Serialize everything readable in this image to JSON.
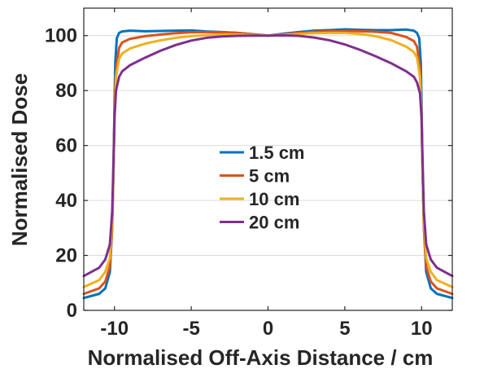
{
  "chart_data": {
    "type": "line",
    "title": "",
    "xlabel": "Normalised Off-Axis Distance / cm",
    "ylabel": "Normalised Dose",
    "xlim": [
      -12,
      12
    ],
    "ylim": [
      0,
      110
    ],
    "xticks": [
      -10,
      -5,
      0,
      5,
      10
    ],
    "xtick_labels": [
      "-10",
      "-5",
      "0",
      "5",
      "10"
    ],
    "yticks": [
      0,
      20,
      40,
      60,
      80,
      100
    ],
    "ytick_labels": [
      "0",
      "20",
      "40",
      "60",
      "80",
      "100"
    ],
    "grid": "horizontal",
    "legend_position": "center",
    "series": [
      {
        "name": "1.5 cm",
        "color": "#0072BD",
        "x": [
          -12,
          -11,
          -10.6,
          -10.3,
          -10.15,
          -10.05,
          -10.0,
          -9.95,
          -9.85,
          -9.7,
          -9.5,
          -9,
          -8,
          -7,
          -6,
          -5,
          -4,
          -3,
          -2,
          -1,
          0,
          1,
          2,
          3,
          4,
          5,
          6,
          7,
          8,
          9,
          9.5,
          9.7,
          9.85,
          9.95,
          10.0,
          10.05,
          10.15,
          10.3,
          10.6,
          11,
          12
        ],
        "y": [
          4.5,
          6,
          8,
          14,
          30,
          55,
          75,
          90,
          99,
          101,
          101.5,
          101.8,
          101.6,
          101.7,
          101.8,
          101.9,
          101.5,
          101.3,
          101,
          100.5,
          100,
          100.7,
          101.3,
          101.8,
          102,
          102.3,
          102.1,
          102,
          102,
          102.2,
          101.8,
          101,
          99,
          90,
          75,
          55,
          30,
          14,
          8,
          6,
          4.5
        ]
      },
      {
        "name": "5 cm",
        "color": "#D95319",
        "x": [
          -12,
          -11,
          -10.6,
          -10.3,
          -10.15,
          -10.05,
          -10.0,
          -9.9,
          -9.7,
          -9.5,
          -9,
          -8,
          -7,
          -6,
          -5,
          -4,
          -3,
          -2,
          -1,
          0,
          1,
          2,
          3,
          4,
          5,
          6,
          7,
          8,
          9,
          9.5,
          9.7,
          9.9,
          10.0,
          10.05,
          10.15,
          10.3,
          10.6,
          11,
          12
        ],
        "y": [
          6,
          8,
          10.5,
          16,
          30,
          55,
          72,
          88,
          95.5,
          97.5,
          98.8,
          99.8,
          100.4,
          100.9,
          101.2,
          101.3,
          101.2,
          101,
          100.5,
          100,
          100.5,
          101,
          101.4,
          101.6,
          101.7,
          101.6,
          101.4,
          101,
          99.5,
          98,
          96,
          88,
          72,
          55,
          30,
          16,
          10.5,
          8,
          6
        ]
      },
      {
        "name": "10 cm",
        "color": "#EDB120",
        "x": [
          -12,
          -11,
          -10.6,
          -10.3,
          -10.15,
          -10.05,
          -10.0,
          -9.9,
          -9.7,
          -9.5,
          -9,
          -8,
          -7,
          -6,
          -5,
          -4,
          -3,
          -2,
          -1,
          0,
          1,
          2,
          3,
          4,
          5,
          6,
          7,
          8,
          9,
          9.5,
          9.7,
          9.9,
          10.0,
          10.05,
          10.15,
          10.3,
          10.6,
          11,
          12
        ],
        "y": [
          8.5,
          11,
          14,
          19,
          32,
          55,
          70,
          85,
          91.5,
          93.5,
          95.3,
          97.1,
          98.3,
          99.2,
          99.8,
          100.2,
          100.4,
          100.4,
          100.2,
          100,
          100.3,
          100.6,
          100.9,
          101,
          101,
          100.6,
          99.8,
          98.4,
          96,
          94,
          92,
          85,
          70,
          55,
          32,
          19,
          14,
          11,
          8.5
        ]
      },
      {
        "name": "20 cm",
        "color": "#7E2F8E",
        "x": [
          -12,
          -11,
          -10.6,
          -10.3,
          -10.15,
          -10.05,
          -10.0,
          -9.9,
          -9.7,
          -9.5,
          -9,
          -8,
          -7,
          -6,
          -5,
          -4,
          -3,
          -2,
          -1,
          0,
          1,
          2,
          3,
          4,
          5,
          6,
          7,
          8,
          9,
          9.5,
          9.7,
          9.9,
          10.0,
          10.05,
          10.15,
          10.3,
          10.6,
          11,
          12
        ],
        "y": [
          12.5,
          15.5,
          18.5,
          24,
          36,
          58,
          70,
          80,
          85,
          87,
          89.2,
          92,
          94.5,
          96.6,
          98.2,
          99.2,
          99.7,
          99.9,
          100,
          100,
          100.1,
          99.9,
          99.3,
          98.3,
          96.8,
          94.8,
          92.5,
          90,
          87,
          85,
          83,
          79,
          70,
          58,
          36,
          24,
          18.5,
          15.5,
          12.5
        ]
      }
    ]
  }
}
